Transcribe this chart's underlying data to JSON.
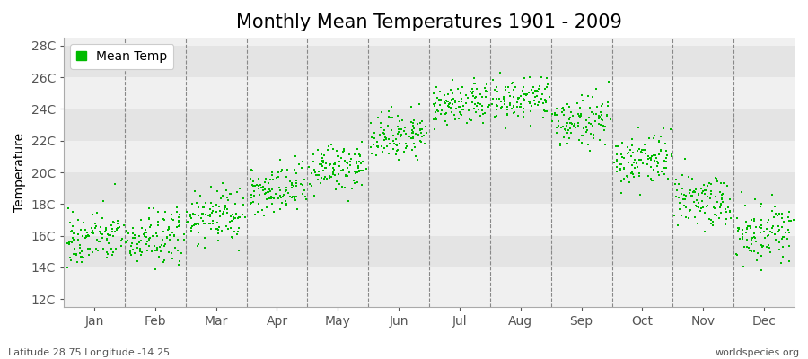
{
  "title": "Monthly Mean Temperatures 1901 - 2009",
  "ylabel": "Temperature",
  "xlabel_months": [
    "Jan",
    "Feb",
    "Mar",
    "Apr",
    "May",
    "Jun",
    "Jul",
    "Aug",
    "Sep",
    "Oct",
    "Nov",
    "Dec"
  ],
  "ytick_labels": [
    "12C",
    "14C",
    "16C",
    "18C",
    "20C",
    "22C",
    "24C",
    "26C",
    "28C"
  ],
  "ytick_values": [
    12,
    14,
    16,
    18,
    20,
    22,
    24,
    26,
    28
  ],
  "ylim": [
    11.5,
    28.5
  ],
  "mean_temps": [
    15.8,
    15.8,
    17.2,
    18.8,
    20.2,
    22.3,
    24.2,
    24.5,
    23.2,
    20.8,
    18.2,
    16.2
  ],
  "std_temps": [
    0.85,
    0.9,
    0.85,
    0.85,
    0.75,
    0.75,
    0.65,
    0.75,
    0.75,
    0.85,
    0.9,
    0.9
  ],
  "n_years": 109,
  "marker_color": "#00bb00",
  "marker_size": 4,
  "bg_color_light": "#f0f0f0",
  "bg_color_dark": "#e4e4e4",
  "legend_label": "Mean Temp",
  "bottom_left_text": "Latitude 28.75 Longitude -14.25",
  "bottom_right_text": "worldspecies.org",
  "title_fontsize": 15,
  "axis_fontsize": 10,
  "tick_fontsize": 10,
  "seed": 42
}
